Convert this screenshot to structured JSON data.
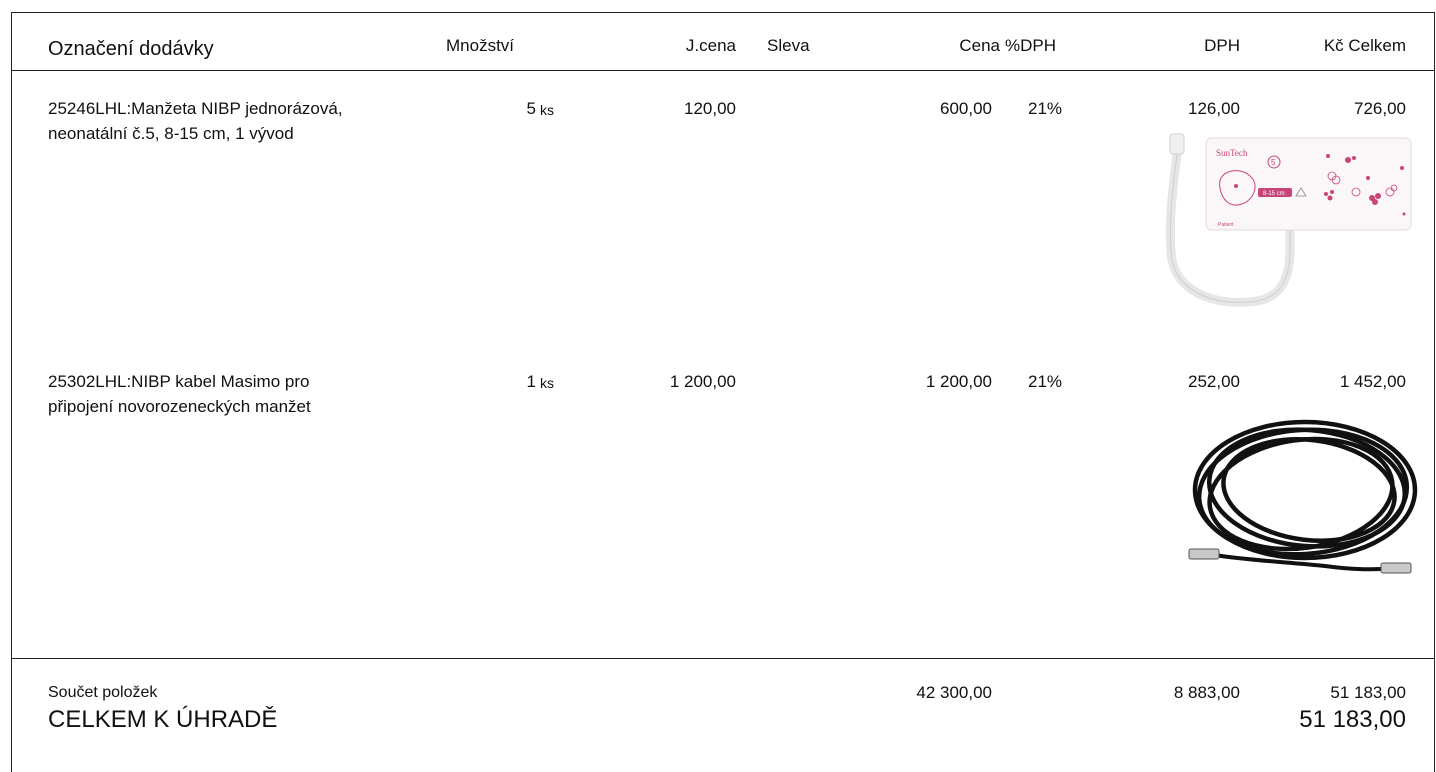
{
  "header": {
    "col_item": "Označení dodávky",
    "col_qty": "Množství",
    "col_unit_price": "J.cena",
    "col_discount": "Sleva",
    "col_price": "Cena",
    "col_vat_rate": "%DPH",
    "col_vat": "DPH",
    "col_total": "Kč Celkem"
  },
  "items": [
    {
      "name_line1": "25246LHL:Manžeta NIBP jednorázová,",
      "name_line2": "neonatální č.5, 8-15 cm, 1 vývod",
      "qty": "5",
      "unit": "ks",
      "unit_price": "120,00",
      "discount": "",
      "price": "600,00",
      "vat_rate": "21%",
      "vat": "126,00",
      "total": "726,00",
      "image": {
        "icon": "neonatal-nibp-cuff-photo",
        "brand_text": "SunTech",
        "size_text": "8-15 cm",
        "number": "5"
      }
    },
    {
      "name_line1": "25302LHL:NIBP kabel Masimo pro",
      "name_line2": "připojení novorozeneckých manžet",
      "qty": "1",
      "unit": "ks",
      "unit_price": "1 200,00",
      "discount": "",
      "price": "1 200,00",
      "vat_rate": "21%",
      "vat": "252,00",
      "total": "1 452,00",
      "image": {
        "icon": "coiled-black-cable-photo"
      }
    }
  ],
  "summary": {
    "label": "Součet položek",
    "price": "42 300,00",
    "vat": "8 883,00",
    "total": "51 183,00"
  },
  "grand_total": {
    "label": "CELKEM K ÚHRADĚ",
    "value": "51 183,00"
  },
  "colors": {
    "pink": "#d63a6e",
    "cable": "#111111"
  }
}
